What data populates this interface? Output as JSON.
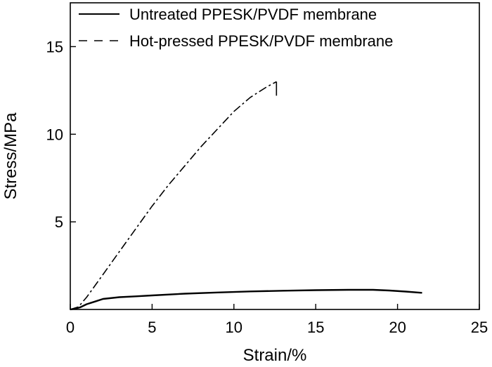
{
  "chart_data": {
    "type": "line",
    "xlabel": "Strain/%",
    "ylabel": "Stress/MPa",
    "xlim": [
      0,
      25
    ],
    "ylim": [
      0,
      17.5
    ],
    "x_ticks": [
      "0",
      "5",
      "10",
      "15",
      "20",
      "25"
    ],
    "y_ticks": [
      "5",
      "10",
      "15"
    ],
    "x_tick_values": [
      0,
      5,
      10,
      15,
      20,
      25
    ],
    "y_tick_values": [
      5,
      10,
      15
    ],
    "grid": false,
    "legend_position": "top-right",
    "series": [
      {
        "name": "Untreated PPESK/PVDF membrane",
        "style": "solid",
        "color": "#000000",
        "x": [
          0,
          0.3,
          0.6,
          1.0,
          1.5,
          2.0,
          3.0,
          4.0,
          5.0,
          7.0,
          9.0,
          11.0,
          13.0,
          15.0,
          17.0,
          18.5,
          19.5,
          20.5,
          21.5
        ],
        "y": [
          0.0,
          0.05,
          0.12,
          0.3,
          0.45,
          0.6,
          0.7,
          0.75,
          0.8,
          0.9,
          0.97,
          1.03,
          1.07,
          1.1,
          1.12,
          1.12,
          1.08,
          1.02,
          0.95
        ]
      },
      {
        "name": "Hot-pressed PPESK/PVDF membrane",
        "style": "dash-dot",
        "color": "#000000",
        "x": [
          0,
          0.5,
          1.0,
          2.0,
          3.0,
          4.0,
          5.0,
          6.0,
          7.0,
          8.0,
          9.0,
          10.0,
          11.0,
          12.0,
          12.6
        ],
        "y": [
          0.0,
          0.15,
          0.7,
          2.0,
          3.3,
          4.6,
          5.9,
          7.1,
          8.2,
          9.3,
          10.3,
          11.3,
          12.1,
          12.7,
          13.0
        ]
      }
    ]
  }
}
